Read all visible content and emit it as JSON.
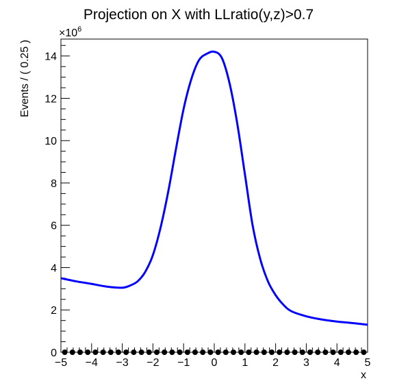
{
  "chart_data": {
    "type": "line",
    "title": "Projection on X with LLratio(y,z)>0.7",
    "xlabel": "x",
    "ylabel": "Events / ( 0.25 )",
    "y_multiplier_label": "×10",
    "y_multiplier_exponent": "6",
    "xlim": [
      -5,
      5
    ],
    "ylim": [
      0,
      14.8
    ],
    "y_scale_factor": 1000000,
    "grid": false,
    "x_ticks": [
      -5,
      -4,
      -3,
      -2,
      -1,
      0,
      1,
      2,
      3,
      4,
      5
    ],
    "x_tick_labels": [
      "−5",
      "−4",
      "−3",
      "−2",
      "−1",
      "0",
      "1",
      "2",
      "3",
      "4",
      "5"
    ],
    "y_ticks": [
      0,
      2,
      4,
      6,
      8,
      10,
      12,
      14
    ],
    "y_tick_labels": [
      "0",
      "2",
      "4",
      "6",
      "8",
      "10",
      "12",
      "14"
    ],
    "series": [
      {
        "kind": "curve",
        "color": "#0000ff",
        "x": [
          -5,
          -4.5,
          -4,
          -3.5,
          -3,
          -2.75,
          -2.5,
          -2.25,
          -2,
          -1.75,
          -1.5,
          -1.25,
          -1,
          -0.75,
          -0.5,
          -0.25,
          0,
          0.25,
          0.5,
          0.75,
          1,
          1.25,
          1.5,
          1.75,
          2,
          2.25,
          2.5,
          3,
          3.5,
          4,
          4.5,
          5
        ],
        "y": [
          3.5,
          3.35,
          3.23,
          3.1,
          3.05,
          3.15,
          3.35,
          3.8,
          4.6,
          5.9,
          7.6,
          9.6,
          11.5,
          12.9,
          13.8,
          14.1,
          14.2,
          13.9,
          12.7,
          10.8,
          8.4,
          6.0,
          4.4,
          3.35,
          2.7,
          2.25,
          1.95,
          1.7,
          1.55,
          1.45,
          1.38,
          1.3
        ]
      },
      {
        "kind": "markers",
        "color": "#000000",
        "x": [
          -4.875,
          -4.625,
          -4.375,
          -4.125,
          -3.875,
          -3.625,
          -3.375,
          -3.125,
          -2.875,
          -2.625,
          -2.375,
          -2.125,
          -1.875,
          -1.625,
          -1.375,
          -1.125,
          -0.875,
          -0.625,
          -0.375,
          -0.125,
          0.125,
          0.375,
          0.625,
          0.875,
          1.125,
          1.375,
          1.625,
          1.875,
          2.125,
          2.375,
          2.625,
          2.875,
          3.125,
          3.375,
          3.625,
          3.875,
          4.125,
          4.375,
          4.625,
          4.875
        ],
        "y": [
          0,
          0,
          0,
          0,
          0,
          0,
          0,
          0,
          0,
          0,
          0,
          0,
          0,
          0,
          0,
          0,
          0,
          0,
          0,
          0,
          0,
          0,
          0,
          0,
          0,
          0,
          0,
          0,
          0,
          0,
          0,
          0,
          0,
          0,
          0,
          0,
          0,
          0,
          0,
          0
        ]
      }
    ]
  }
}
